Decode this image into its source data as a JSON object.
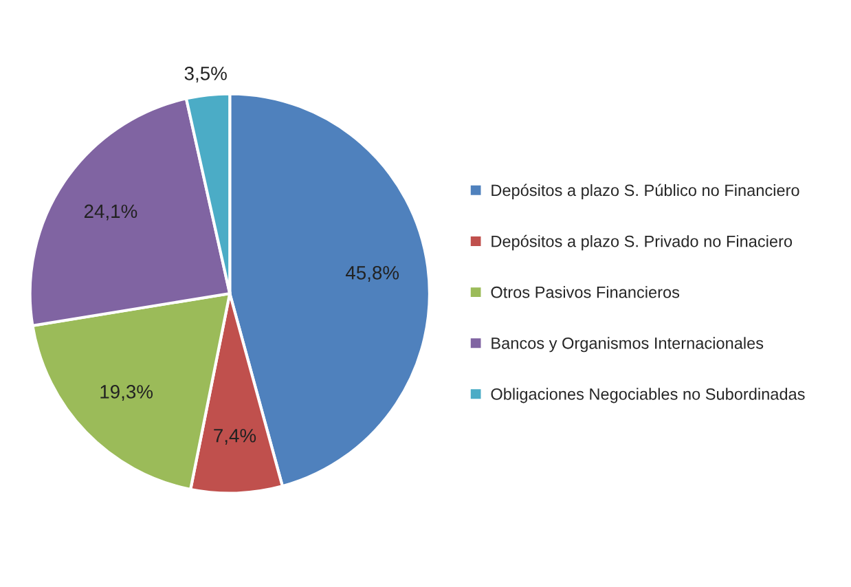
{
  "chart_data": {
    "type": "pie",
    "categories": [
      "Depósitos a plazo S. Público no Financiero",
      "Depósitos a plazo S. Privado no Finaciero",
      "Otros Pasivos Financieros",
      "Bancos y Organismos Internacionales",
      "Obligaciones Negociables no Subordinadas"
    ],
    "values": [
      45.8,
      7.4,
      19.3,
      24.1,
      3.5
    ],
    "value_labels": [
      "45,8%",
      "7,4%",
      "19,3%",
      "24,1%",
      "3,5%"
    ],
    "colors": [
      "#4f81bd",
      "#c0504d",
      "#9bbb59",
      "#8064a2",
      "#4bacc6"
    ],
    "legend": "right"
  }
}
